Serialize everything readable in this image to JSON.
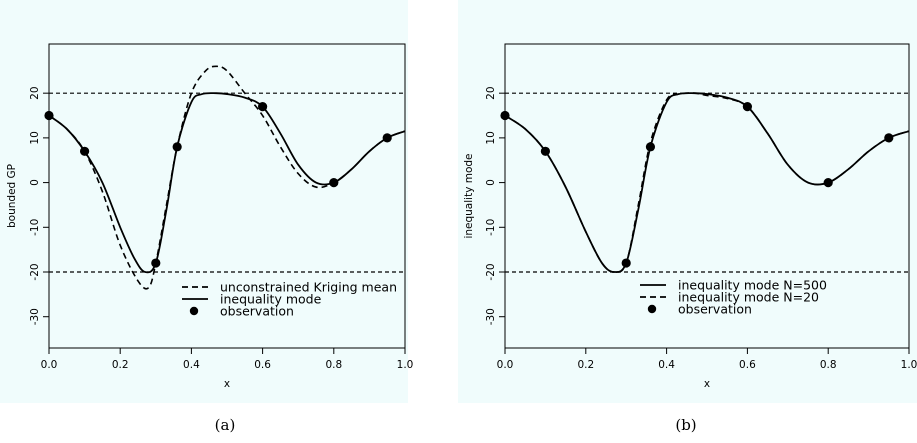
{
  "captions": [
    "(a)",
    "(b)"
  ],
  "chart_data": [
    {
      "type": "line",
      "title": "",
      "xlabel": "x",
      "ylabel": "bounded GP",
      "xlim": [
        0,
        1
      ],
      "ylim": [
        -37,
        31
      ],
      "xticks": [
        "0.0",
        "0.2",
        "0.4",
        "0.6",
        "0.8",
        "1.0"
      ],
      "yticks": [
        "-30",
        "-20",
        "-10",
        "0",
        "10",
        "20"
      ],
      "bounds": [
        -20,
        20
      ],
      "legend_position": "bottom-center",
      "series": [
        {
          "name": "unconstrained Kriging mean",
          "style": "dashed",
          "x": [
            0.0,
            0.05,
            0.1,
            0.15,
            0.2,
            0.25,
            0.28,
            0.3,
            0.33,
            0.36,
            0.4,
            0.44,
            0.47,
            0.5,
            0.55,
            0.6,
            0.65,
            0.7,
            0.75,
            0.8,
            0.85,
            0.9,
            0.95,
            1.0
          ],
          "y": [
            15,
            12,
            7,
            -2,
            -14,
            -22,
            -23.5,
            -18,
            -5,
            8,
            20,
            25,
            26,
            25,
            20,
            15,
            8,
            2,
            -1,
            0,
            3,
            7,
            10,
            11.5
          ]
        },
        {
          "name": "inequality mode",
          "style": "solid",
          "x": [
            0.0,
            0.05,
            0.1,
            0.15,
            0.2,
            0.24,
            0.27,
            0.3,
            0.33,
            0.36,
            0.4,
            0.43,
            0.47,
            0.5,
            0.55,
            0.6,
            0.65,
            0.7,
            0.75,
            0.8,
            0.85,
            0.9,
            0.95,
            1.0
          ],
          "y": [
            15,
            12,
            7,
            0,
            -10,
            -17,
            -20,
            -18,
            -6,
            8,
            18,
            19.8,
            20,
            19.8,
            19,
            17,
            11,
            4,
            0,
            0,
            3,
            7,
            10,
            11.5
          ]
        },
        {
          "name": "observation",
          "style": "points",
          "x": [
            0.0,
            0.1,
            0.3,
            0.36,
            0.6,
            0.8,
            0.95
          ],
          "y": [
            15,
            7,
            -18,
            8,
            17,
            0,
            10
          ]
        }
      ]
    },
    {
      "type": "line",
      "title": "",
      "xlabel": "x",
      "ylabel": "inequality mode",
      "xlim": [
        0,
        1
      ],
      "ylim": [
        -37,
        31
      ],
      "xticks": [
        "0.0",
        "0.2",
        "0.4",
        "0.6",
        "0.8",
        "1.0"
      ],
      "yticks": [
        "-30",
        "-20",
        "-10",
        "0",
        "10",
        "20"
      ],
      "bounds": [
        -20,
        20
      ],
      "legend_position": "bottom-center",
      "series": [
        {
          "name": "inequality mode N=500",
          "style": "solid",
          "x": [
            0.0,
            0.05,
            0.1,
            0.15,
            0.2,
            0.24,
            0.27,
            0.3,
            0.33,
            0.36,
            0.4,
            0.43,
            0.47,
            0.5,
            0.55,
            0.6,
            0.65,
            0.7,
            0.75,
            0.8,
            0.85,
            0.9,
            0.95,
            1.0
          ],
          "y": [
            15,
            12,
            7,
            -1,
            -11,
            -18,
            -20,
            -18,
            -6,
            8,
            18,
            19.8,
            20,
            19.8,
            19,
            17,
            11,
            4,
            0,
            0,
            3,
            7,
            10,
            11.5
          ]
        },
        {
          "name": "inequality mode N=20",
          "style": "dashed",
          "x": [
            0.0,
            0.05,
            0.1,
            0.15,
            0.2,
            0.24,
            0.27,
            0.3,
            0.33,
            0.36,
            0.4,
            0.43,
            0.47,
            0.5,
            0.55,
            0.6,
            0.65,
            0.7,
            0.75,
            0.8,
            0.85,
            0.9,
            0.95,
            1.0
          ],
          "y": [
            15,
            12,
            7,
            -1,
            -11,
            -18,
            -20,
            -18,
            -5,
            9,
            18.5,
            19.8,
            20,
            19.5,
            18.8,
            17,
            11,
            4,
            0,
            0,
            3,
            7,
            10,
            11.5
          ]
        },
        {
          "name": "observation",
          "style": "points",
          "x": [
            0.0,
            0.1,
            0.3,
            0.36,
            0.6,
            0.8,
            0.95
          ],
          "y": [
            15,
            7,
            -18,
            8,
            17,
            0,
            10
          ]
        }
      ]
    }
  ]
}
